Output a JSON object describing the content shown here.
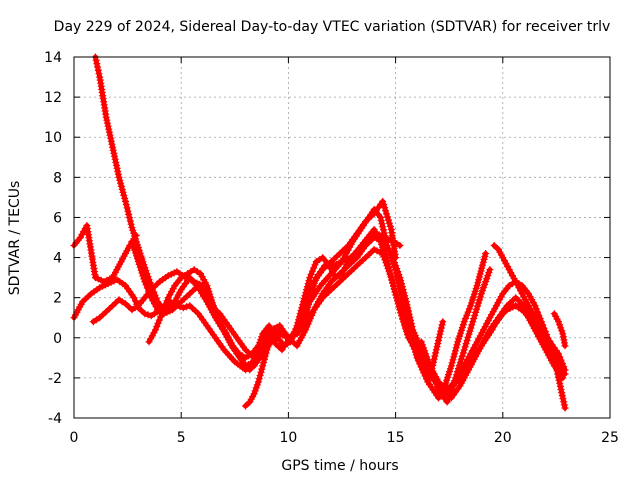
{
  "chart_data": {
    "type": "scatter",
    "title": "Day 229 of 2024, Sidereal Day-to-day VTEC variation (SDTVAR) for receiver trlv",
    "xlabel": "GPS time / hours",
    "ylabel": "SDTVAR / TECUs",
    "xlim": [
      0,
      25
    ],
    "ylim": [
      -4,
      14
    ],
    "xticks": [
      "0",
      "5",
      "10",
      "15",
      "20",
      "25"
    ],
    "yticks": [
      "-4",
      "-2",
      "0",
      "2",
      "4",
      "6",
      "8",
      "10",
      "12",
      "14"
    ],
    "grid": true,
    "marker": "+",
    "color": "#ff0000",
    "series": [
      {
        "name": "s1",
        "x": [
          0.0,
          0.3,
          0.6,
          1.0,
          1.4,
          1.8,
          2.2,
          2.6,
          2.9
        ],
        "y": [
          4.6,
          5.0,
          5.6,
          3.0,
          2.8,
          3.0,
          3.8,
          4.6,
          5.1
        ]
      },
      {
        "name": "s2",
        "x": [
          1.0,
          1.2,
          1.5,
          1.8,
          2.1,
          2.4,
          2.7,
          3.0,
          3.3,
          3.6,
          3.9,
          4.2,
          4.6,
          5.0,
          5.4,
          5.8,
          6.2,
          6.6,
          7.0,
          7.4,
          7.8,
          8.0,
          8.2,
          8.5,
          8.8,
          9.1,
          9.4,
          9.7,
          10.0,
          10.3,
          10.6,
          11.0,
          11.5,
          12.0,
          12.5,
          13.0,
          13.5,
          14.0,
          14.3,
          14.6,
          15.0,
          15.3,
          15.6,
          16.0,
          16.5,
          17.0,
          17.5,
          18.0,
          18.5,
          19.0,
          19.5,
          19.8,
          20.2,
          20.6,
          21.0,
          21.5,
          22.0,
          22.5,
          22.9
        ],
        "y": [
          14.0,
          13.0,
          11.0,
          9.5,
          8.0,
          6.8,
          5.5,
          4.5,
          3.5,
          2.6,
          1.8,
          1.4,
          1.6,
          2.4,
          3.0,
          2.5,
          1.8,
          1.0,
          0.3,
          -0.5,
          -1.0,
          -1.5,
          -1.6,
          -0.8,
          0.2,
          0.6,
          -0.3,
          -0.6,
          -0.1,
          0.3,
          0.8,
          1.8,
          2.6,
          3.2,
          3.8,
          4.8,
          5.6,
          6.4,
          6.0,
          4.6,
          3.4,
          2.0,
          0.6,
          -1.0,
          -2.2,
          -3.0,
          -2.6,
          -2.0,
          -1.2,
          -0.4,
          0.4,
          1.0,
          1.4,
          1.6,
          1.3,
          0.6,
          -0.4,
          -1.5,
          -3.5
        ]
      },
      {
        "name": "s3",
        "x": [
          0.0,
          0.4,
          0.8,
          1.2,
          1.6,
          2.0,
          2.4,
          2.8,
          3.0,
          3.3,
          3.6,
          3.9,
          4.2,
          4.5,
          4.8,
          5.1,
          5.4,
          5.8,
          6.2,
          6.6,
          7.0,
          7.5,
          8.0,
          8.4,
          8.8,
          9.2,
          9.6,
          10.0,
          10.4,
          10.8,
          11.2,
          11.6,
          12.0,
          12.4,
          12.8,
          13.2,
          13.6,
          14.0,
          14.4,
          14.8,
          15.2,
          15.6,
          16.0,
          16.4,
          16.8,
          17.2,
          17.6,
          18.0,
          18.4,
          18.8,
          19.2,
          19.6,
          20.0,
          20.4,
          20.8,
          21.2,
          21.6,
          22.0,
          22.4,
          22.8
        ],
        "y": [
          1.0,
          1.8,
          2.2,
          2.5,
          2.7,
          2.9,
          2.6,
          2.0,
          1.5,
          1.2,
          1.1,
          1.3,
          1.6,
          1.8,
          1.6,
          1.5,
          1.6,
          1.2,
          0.6,
          0.0,
          -0.6,
          -1.2,
          -1.6,
          -1.4,
          -0.8,
          -0.2,
          0.2,
          0.0,
          0.2,
          0.8,
          1.4,
          2.0,
          2.4,
          2.8,
          3.2,
          3.6,
          4.0,
          4.4,
          4.2,
          3.0,
          1.4,
          0.0,
          -0.6,
          -1.2,
          -2.0,
          -2.6,
          -3.0,
          -2.4,
          -1.6,
          -0.8,
          0.0,
          0.6,
          1.2,
          1.6,
          1.6,
          1.0,
          0.2,
          -0.6,
          -1.4,
          -2.0
        ]
      },
      {
        "name": "s4",
        "x": [
          0.9,
          1.2,
          1.5,
          1.8,
          2.1,
          2.4,
          2.7,
          3.0,
          3.3,
          3.6,
          4.0,
          4.4,
          4.8,
          5.2,
          5.6,
          6.0,
          6.4,
          6.8,
          7.2,
          7.6,
          8.0,
          8.4,
          8.8,
          9.2,
          9.6,
          10.0,
          10.4,
          10.8,
          11.2,
          11.6,
          12.0,
          12.4,
          12.8,
          13.2,
          13.6,
          14.0,
          14.4,
          14.8,
          15.2,
          15.5,
          15.8,
          16.2,
          16.6,
          17.0,
          17.4,
          17.8,
          18.2,
          18.6,
          19.0,
          19.4,
          19.8,
          20.2,
          20.6,
          21.0,
          21.4,
          21.8,
          22.2,
          22.6,
          22.9
        ],
        "y": [
          0.8,
          1.0,
          1.3,
          1.6,
          1.9,
          1.7,
          1.4,
          1.6,
          2.0,
          2.4,
          2.8,
          3.1,
          3.3,
          3.0,
          2.8,
          2.6,
          1.8,
          0.8,
          0.0,
          -0.8,
          -1.4,
          -1.2,
          -0.4,
          0.4,
          0.6,
          0.0,
          -0.4,
          0.4,
          1.4,
          2.2,
          2.8,
          3.2,
          3.6,
          4.0,
          4.6,
          5.0,
          4.8,
          4.2,
          3.0,
          1.8,
          0.4,
          -0.6,
          -1.4,
          -2.2,
          -2.6,
          -2.2,
          -1.6,
          -1.0,
          -0.4,
          0.4,
          1.0,
          1.6,
          2.0,
          1.6,
          1.0,
          0.4,
          -0.2,
          -0.8,
          -1.6
        ]
      },
      {
        "name": "s5",
        "x": [
          2.7,
          3.0,
          3.3,
          3.6,
          3.9,
          4.2,
          4.6,
          5.0,
          5.4,
          5.8,
          6.1,
          6.4,
          6.8,
          7.2,
          7.6,
          8.0,
          8.4,
          8.8,
          9.2,
          9.6,
          10.0,
          10.4,
          10.8,
          11.0,
          11.3,
          11.7,
          12.1,
          12.5,
          12.9,
          13.3,
          13.7,
          14.1,
          14.5,
          14.9,
          15.2
        ],
        "y": [
          4.8,
          3.8,
          2.8,
          2.0,
          1.4,
          1.2,
          1.4,
          1.8,
          2.2,
          2.6,
          2.2,
          1.6,
          1.2,
          0.6,
          0.0,
          -0.6,
          -1.0,
          -0.6,
          0.0,
          0.4,
          0.0,
          0.2,
          1.0,
          2.0,
          3.0,
          3.6,
          3.6,
          3.8,
          4.0,
          4.4,
          4.8,
          5.2,
          5.0,
          4.8,
          4.6
        ]
      },
      {
        "name": "s6",
        "x": [
          3.5,
          3.8,
          4.1,
          4.4,
          4.7,
          5.0,
          5.3,
          5.6,
          5.9,
          6.2,
          6.5,
          6.8,
          7.1,
          7.4,
          7.7,
          8.0,
          8.3,
          8.6,
          8.9,
          9.2,
          9.5,
          9.8,
          10.1,
          10.4,
          10.7,
          11.0,
          11.3,
          11.6,
          11.9,
          12.2,
          12.5,
          12.8,
          13.1,
          13.4,
          13.7,
          14.0,
          14.3,
          14.6,
          14.9,
          15.2,
          15.5,
          15.8,
          16.1,
          16.4,
          16.7,
          17.0,
          17.3,
          17.6,
          17.9,
          18.2,
          18.5,
          18.8,
          19.1,
          19.4,
          19.7,
          20.0,
          20.3,
          20.6,
          20.9,
          21.2,
          21.5,
          21.8,
          22.1,
          22.4,
          22.7
        ],
        "y": [
          -0.2,
          0.4,
          1.2,
          2.0,
          2.6,
          3.0,
          3.2,
          3.4,
          3.2,
          2.6,
          1.6,
          0.8,
          0.2,
          -0.4,
          -0.8,
          -1.0,
          -0.8,
          -0.4,
          0.2,
          0.4,
          0.0,
          -0.4,
          -0.2,
          0.6,
          1.8,
          3.0,
          3.8,
          4.0,
          3.6,
          3.0,
          3.2,
          3.8,
          4.2,
          4.6,
          5.0,
          5.4,
          4.8,
          3.8,
          2.6,
          1.4,
          0.4,
          -0.4,
          -1.0,
          -1.6,
          -2.0,
          -2.4,
          -2.6,
          -2.4,
          -2.0,
          -1.4,
          -0.8,
          -0.2,
          0.4,
          1.0,
          1.6,
          2.2,
          2.6,
          2.8,
          2.6,
          2.2,
          1.6,
          0.8,
          0.0,
          -0.6,
          -1.2
        ]
      },
      {
        "name": "s7",
        "x": [
          8.0,
          8.2,
          8.4,
          8.6,
          8.8,
          9.0,
          9.2,
          9.4,
          9.6
        ],
        "y": [
          -3.4,
          -3.2,
          -2.8,
          -2.2,
          -1.4,
          -0.6,
          0.0,
          0.4,
          0.6
        ]
      },
      {
        "name": "s8",
        "x": [
          19.6,
          19.8,
          20.0,
          20.3,
          20.6,
          20.9,
          21.2,
          21.5,
          21.8,
          22.1,
          22.4,
          22.7,
          22.9
        ],
        "y": [
          4.6,
          4.4,
          4.0,
          3.4,
          2.8,
          2.2,
          1.6,
          1.0,
          0.4,
          -0.2,
          -0.8,
          -1.4,
          -1.8
        ]
      },
      {
        "name": "s9",
        "x": [
          16.2,
          16.6,
          17.0,
          17.4,
          17.8,
          18.2,
          18.6,
          19.0,
          19.4
        ],
        "y": [
          -0.2,
          -1.4,
          -2.6,
          -3.2,
          -2.0,
          -0.6,
          0.8,
          2.2,
          3.4
        ]
      },
      {
        "name": "s10",
        "x": [
          17.0,
          17.3,
          17.6,
          17.9,
          18.2,
          18.5,
          18.8,
          19.2
        ],
        "y": [
          -3.0,
          -2.4,
          -1.4,
          -0.2,
          0.8,
          1.6,
          2.6,
          4.2
        ]
      },
      {
        "name": "s11",
        "x": [
          16.6,
          16.9,
          17.2
        ],
        "y": [
          -2.0,
          -0.6,
          0.8
        ]
      },
      {
        "name": "s12",
        "x": [
          10.4,
          10.8,
          11.2,
          11.6,
          12.0,
          12.4,
          12.8,
          13.2,
          13.6,
          14.0,
          14.4,
          14.8,
          15.0
        ],
        "y": [
          0.2,
          1.6,
          2.8,
          3.4,
          3.8,
          4.2,
          4.6,
          5.2,
          5.8,
          6.2,
          6.8,
          5.4,
          4.0
        ]
      },
      {
        "name": "s13",
        "x": [
          22.4,
          22.6,
          22.8,
          22.9
        ],
        "y": [
          1.2,
          0.8,
          0.2,
          -0.4
        ]
      }
    ]
  }
}
